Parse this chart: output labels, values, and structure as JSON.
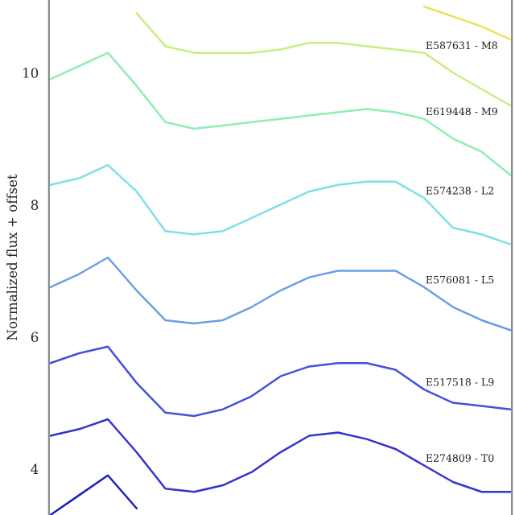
{
  "chart_data": {
    "type": "line",
    "ylabel": "Normalized flux + offset",
    "categories": [
      null,
      null,
      null,
      null,
      null,
      null,
      null,
      null,
      null,
      null,
      null,
      null,
      null,
      null,
      null,
      null,
      null
    ],
    "ylim": [
      3.3,
      11.1
    ],
    "yticks": [
      4,
      6,
      8,
      10
    ],
    "tick_labels": "y",
    "grid": false,
    "legend": false,
    "series": [
      {
        "color": "#e6e65a",
        "values": [
          null,
          null,
          null,
          null,
          null,
          null,
          null,
          null,
          null,
          null,
          null,
          null,
          null,
          11.0,
          10.85,
          10.7,
          10.5
        ]
      },
      {
        "name": "E587631 - M8",
        "color": "#c8ee80",
        "values": [
          null,
          null,
          null,
          10.9,
          10.4,
          10.3,
          10.3,
          10.3,
          10.35,
          10.45,
          10.45,
          10.4,
          10.35,
          10.3,
          10.0,
          9.75,
          9.5
        ]
      },
      {
        "name": "E619448 - M9",
        "color": "#8eeeb4",
        "values": [
          9.9,
          10.1,
          10.3,
          9.8,
          9.25,
          9.15,
          9.2,
          9.25,
          9.3,
          9.35,
          9.4,
          9.45,
          9.4,
          9.3,
          9.0,
          8.8,
          8.45
        ]
      },
      {
        "name": "E574238 - L2",
        "color": "#7ee0e6",
        "values": [
          8.3,
          8.4,
          8.6,
          8.2,
          7.6,
          7.55,
          7.6,
          7.8,
          8.0,
          8.2,
          8.3,
          8.35,
          8.35,
          8.1,
          7.65,
          7.55,
          7.4
        ]
      },
      {
        "name": "E576081 - L5",
        "color": "#6b9ee6",
        "values": [
          6.75,
          6.95,
          7.2,
          6.7,
          6.25,
          6.2,
          6.25,
          6.45,
          6.7,
          6.9,
          7.0,
          7.0,
          7.0,
          6.75,
          6.45,
          6.25,
          6.1
        ]
      },
      {
        "name": "E517518 - L9",
        "color": "#4650dc",
        "values": [
          5.6,
          5.75,
          5.85,
          5.3,
          4.85,
          4.8,
          4.9,
          5.1,
          5.4,
          5.55,
          5.6,
          5.6,
          5.5,
          5.2,
          5.0,
          4.95,
          4.9
        ]
      },
      {
        "name": "E274809 - T0",
        "color": "#3434cc",
        "values": [
          4.5,
          4.6,
          4.75,
          4.25,
          3.7,
          3.65,
          3.75,
          3.95,
          4.25,
          4.5,
          4.55,
          4.45,
          4.3,
          4.05,
          3.8,
          3.65,
          3.65
        ]
      },
      {
        "color": "#1e1ec0",
        "values": [
          3.3,
          3.6,
          3.9,
          3.4,
          null,
          null,
          null,
          null,
          null,
          null,
          null,
          null,
          null,
          null,
          null,
          null,
          null
        ]
      }
    ]
  }
}
